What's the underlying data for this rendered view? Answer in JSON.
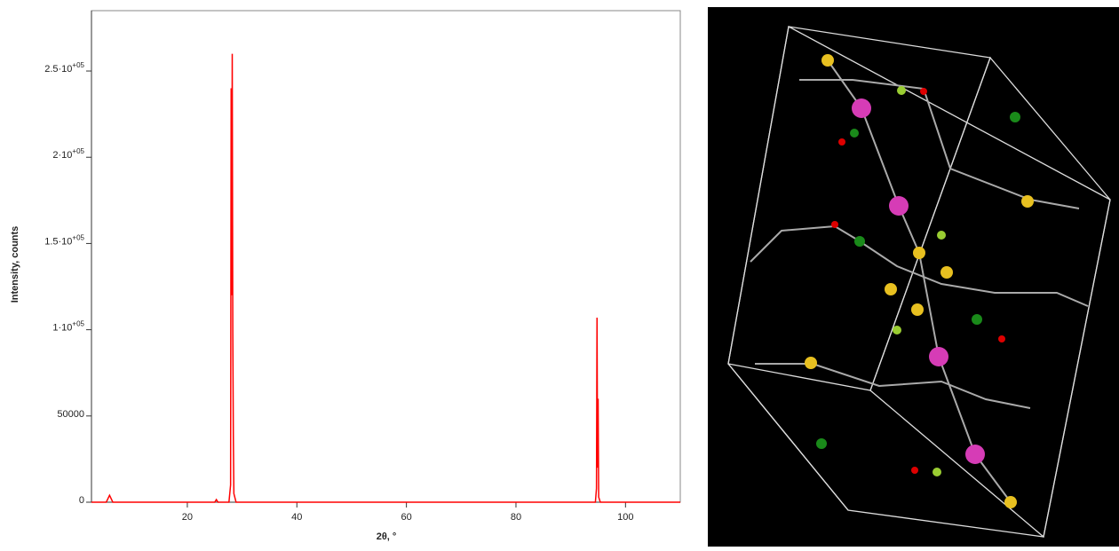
{
  "chart_data": {
    "type": "line",
    "xlabel": "2θ, °",
    "ylabel": "Intensity, counts",
    "series": [
      {
        "color": "#ff0000",
        "x": [
          2.5,
          5.2,
          5.8,
          6.4,
          25.0,
          25.3,
          25.6,
          27.6,
          27.9,
          28.0,
          28.1,
          28.2,
          28.3,
          28.4,
          28.5,
          28.9,
          94.5,
          94.7,
          94.8,
          94.9,
          95.0,
          95.1,
          95.4,
          110
        ],
        "values": [
          0,
          0,
          4000,
          0,
          0,
          1500,
          0,
          0,
          10000,
          240000,
          120000,
          260000,
          100000,
          38000,
          5000,
          0,
          0,
          8000,
          107000,
          20000,
          60000,
          3000,
          0,
          0
        ]
      }
    ],
    "xlim": [
      2.5,
      110
    ],
    "xticks": [
      20,
      40,
      60,
      80,
      100
    ],
    "ylim": [
      0,
      285000
    ],
    "yticks": [
      0,
      50000,
      {
        "value": 100000,
        "label": "1·10",
        "exponent": "+05"
      },
      {
        "value": 150000,
        "label": "1.5·10",
        "exponent": "+05"
      },
      {
        "value": 200000,
        "label": "2·10",
        "exponent": "+05"
      },
      {
        "value": 250000,
        "label": "2.5·10",
        "exponent": "+05"
      }
    ]
  }
}
